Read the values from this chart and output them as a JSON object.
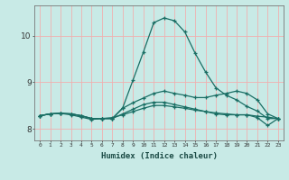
{
  "xlabel": "Humidex (Indice chaleur)",
  "background_color": "#c8eae6",
  "grid_color": "#f0b0b0",
  "line_color": "#1a6e64",
  "xmin": -0.5,
  "xmax": 23.5,
  "ymin": 7.75,
  "ymax": 10.65,
  "yticks": [
    8,
    9,
    10
  ],
  "xtick_labels": [
    "0",
    "1",
    "2",
    "3",
    "4",
    "5",
    "6",
    "7",
    "8",
    "9",
    "10",
    "11",
    "12",
    "13",
    "14",
    "15",
    "16",
    "17",
    "18",
    "19",
    "20",
    "21",
    "22",
    "23"
  ],
  "series": [
    [
      8.28,
      8.32,
      8.33,
      8.32,
      8.28,
      8.22,
      8.22,
      8.22,
      8.45,
      9.05,
      9.65,
      10.28,
      10.38,
      10.32,
      10.08,
      9.62,
      9.22,
      8.88,
      8.72,
      8.62,
      8.48,
      8.38,
      8.22,
      8.22
    ],
    [
      8.28,
      8.32,
      8.33,
      8.32,
      8.28,
      8.22,
      8.22,
      8.22,
      8.44,
      8.56,
      8.66,
      8.76,
      8.81,
      8.76,
      8.72,
      8.67,
      8.67,
      8.72,
      8.76,
      8.81,
      8.76,
      8.62,
      8.32,
      8.22
    ],
    [
      8.28,
      8.32,
      8.33,
      8.3,
      8.25,
      8.2,
      8.22,
      8.24,
      8.3,
      8.37,
      8.44,
      8.5,
      8.5,
      8.47,
      8.44,
      8.4,
      8.37,
      8.34,
      8.32,
      8.3,
      8.3,
      8.27,
      8.25,
      8.22
    ],
    [
      8.28,
      8.32,
      8.33,
      8.32,
      8.28,
      8.22,
      8.22,
      8.22,
      8.32,
      8.42,
      8.52,
      8.57,
      8.57,
      8.52,
      8.47,
      8.42,
      8.37,
      8.32,
      8.3,
      8.3,
      8.3,
      8.24,
      8.07,
      8.22
    ]
  ]
}
